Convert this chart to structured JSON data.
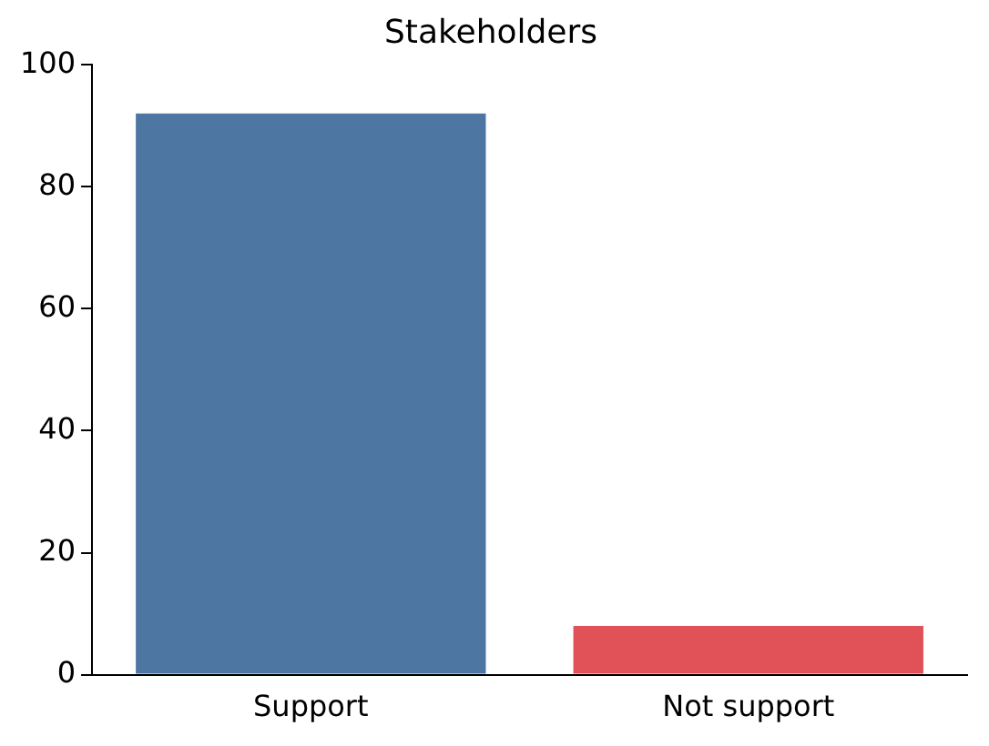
{
  "chart_data": {
    "type": "bar",
    "title": "Stakeholders",
    "categories": [
      "Support",
      "Not support"
    ],
    "values": [
      92,
      8
    ],
    "colors": [
      "#4e76a3",
      "#e05258"
    ],
    "ylim": [
      0,
      100
    ],
    "yticks": [
      0,
      20,
      40,
      60,
      80,
      100
    ],
    "grid": false,
    "legend": false
  }
}
